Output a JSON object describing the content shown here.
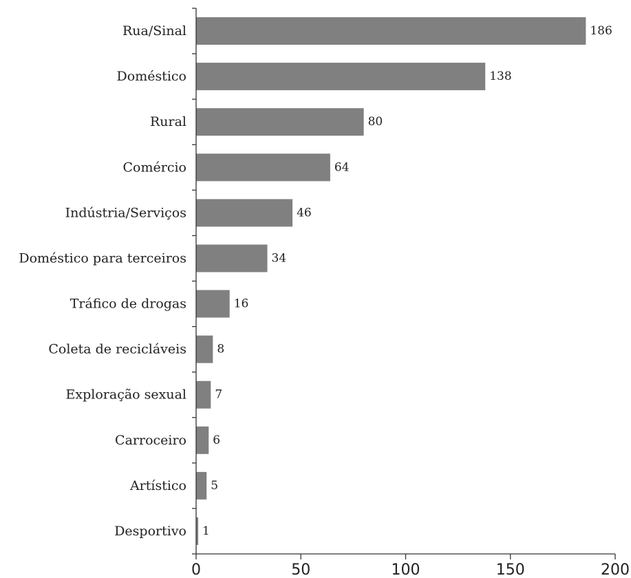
{
  "chart_data": {
    "type": "bar",
    "orientation": "horizontal",
    "title": "",
    "xlabel": "",
    "ylabel": "",
    "categories": [
      "Rua/Sinal",
      "Doméstico",
      "Rural",
      "Comércio",
      "Indústria/Serviços",
      "Doméstico para terceiros",
      "Tráfico de drogas",
      "Coleta de recicláveis",
      "Exploração sexual",
      "Carroceiro",
      "Artístico",
      "Desportivo"
    ],
    "values": [
      186,
      138,
      80,
      64,
      46,
      34,
      16,
      8,
      7,
      6,
      5,
      1
    ],
    "xlim": [
      0,
      200
    ],
    "xticks": [
      0,
      50,
      100,
      150,
      200
    ],
    "bar_color": "#808080",
    "grid": false,
    "legend": "none"
  }
}
